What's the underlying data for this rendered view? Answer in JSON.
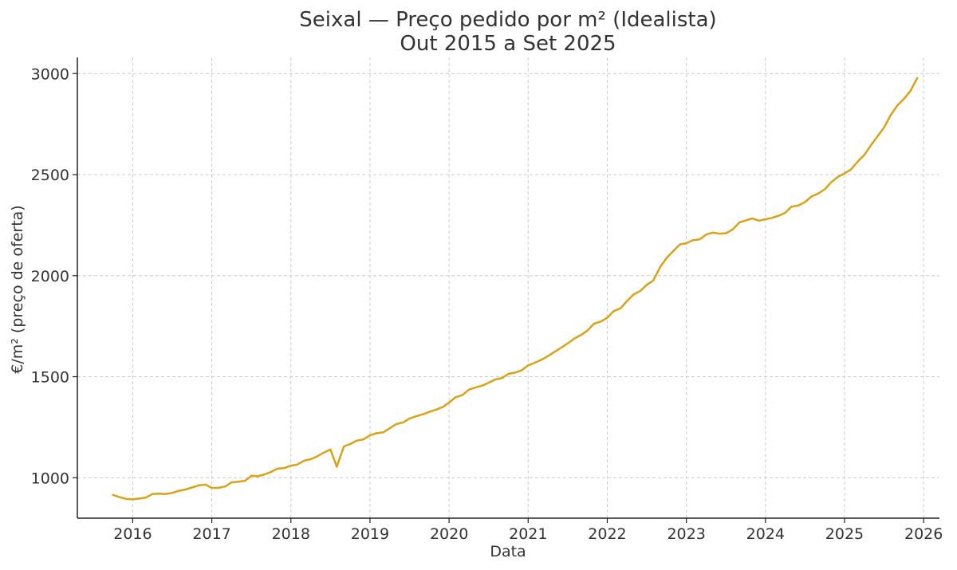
{
  "chart_data": {
    "type": "line",
    "title": "Seixal — Preço pedido por m² (Idealista)",
    "subtitle": "Out 2015 a Set 2025",
    "xlabel": "Data",
    "ylabel": "€/m² (preço de oferta)",
    "xlim": [
      2015.3,
      2026.2
    ],
    "ylim": [
      800,
      3080
    ],
    "x_ticks": [
      2016,
      2017,
      2018,
      2019,
      2020,
      2021,
      2022,
      2023,
      2024,
      2025,
      2026
    ],
    "y_ticks": [
      1000,
      1500,
      2000,
      2500,
      3000
    ],
    "grid": true,
    "line_color": "#DAA316",
    "series": [
      {
        "points": [
          [
            2015.75,
            915
          ],
          [
            2015.83,
            905
          ],
          [
            2015.92,
            895
          ],
          [
            2016.0,
            893
          ],
          [
            2016.08,
            897
          ],
          [
            2016.17,
            902
          ],
          [
            2016.25,
            920
          ],
          [
            2016.33,
            921
          ],
          [
            2016.42,
            920
          ],
          [
            2016.5,
            925
          ],
          [
            2016.58,
            935
          ],
          [
            2016.67,
            942
          ],
          [
            2016.75,
            952
          ],
          [
            2016.83,
            962
          ],
          [
            2016.92,
            966
          ],
          [
            2017.0,
            950
          ],
          [
            2017.08,
            950
          ],
          [
            2017.17,
            957
          ],
          [
            2017.25,
            977
          ],
          [
            2017.33,
            980
          ],
          [
            2017.42,
            985
          ],
          [
            2017.5,
            1010
          ],
          [
            2017.58,
            1007
          ],
          [
            2017.67,
            1017
          ],
          [
            2017.75,
            1029
          ],
          [
            2017.83,
            1045
          ],
          [
            2017.92,
            1048
          ],
          [
            2018.0,
            1060
          ],
          [
            2018.08,
            1065
          ],
          [
            2018.17,
            1085
          ],
          [
            2018.25,
            1092
          ],
          [
            2018.33,
            1105
          ],
          [
            2018.42,
            1125
          ],
          [
            2018.5,
            1140
          ],
          [
            2018.58,
            1055
          ],
          [
            2018.67,
            1155
          ],
          [
            2018.75,
            1167
          ],
          [
            2018.83,
            1184
          ],
          [
            2018.92,
            1190
          ],
          [
            2019.0,
            1210
          ],
          [
            2019.08,
            1220
          ],
          [
            2019.17,
            1225
          ],
          [
            2019.25,
            1245
          ],
          [
            2019.33,
            1265
          ],
          [
            2019.42,
            1274
          ],
          [
            2019.5,
            1293
          ],
          [
            2019.58,
            1304
          ],
          [
            2019.67,
            1314
          ],
          [
            2019.75,
            1326
          ],
          [
            2019.83,
            1336
          ],
          [
            2019.92,
            1350
          ],
          [
            2020.0,
            1372
          ],
          [
            2020.08,
            1398
          ],
          [
            2020.17,
            1410
          ],
          [
            2020.25,
            1436
          ],
          [
            2020.33,
            1446
          ],
          [
            2020.42,
            1456
          ],
          [
            2020.5,
            1470
          ],
          [
            2020.58,
            1486
          ],
          [
            2020.67,
            1494
          ],
          [
            2020.75,
            1514
          ],
          [
            2020.83,
            1520
          ],
          [
            2020.92,
            1532
          ],
          [
            2021.0,
            1556
          ],
          [
            2021.08,
            1569
          ],
          [
            2021.17,
            1584
          ],
          [
            2021.25,
            1602
          ],
          [
            2021.33,
            1622
          ],
          [
            2021.42,
            1644
          ],
          [
            2021.5,
            1665
          ],
          [
            2021.58,
            1688
          ],
          [
            2021.67,
            1707
          ],
          [
            2021.75,
            1728
          ],
          [
            2021.83,
            1762
          ],
          [
            2021.92,
            1773
          ],
          [
            2022.0,
            1792
          ],
          [
            2022.08,
            1824
          ],
          [
            2022.17,
            1839
          ],
          [
            2022.25,
            1875
          ],
          [
            2022.33,
            1906
          ],
          [
            2022.42,
            1925
          ],
          [
            2022.5,
            1955
          ],
          [
            2022.58,
            1975
          ],
          [
            2022.67,
            2043
          ],
          [
            2022.75,
            2087
          ],
          [
            2022.83,
            2120
          ],
          [
            2022.92,
            2155
          ],
          [
            2023.0,
            2160
          ],
          [
            2023.08,
            2175
          ],
          [
            2023.17,
            2180
          ],
          [
            2023.25,
            2203
          ],
          [
            2023.33,
            2213
          ],
          [
            2023.42,
            2208
          ],
          [
            2023.5,
            2210
          ],
          [
            2023.58,
            2227
          ],
          [
            2023.67,
            2263
          ],
          [
            2023.75,
            2273
          ],
          [
            2023.83,
            2283
          ],
          [
            2023.92,
            2272
          ],
          [
            2024.0,
            2279
          ],
          [
            2024.08,
            2286
          ],
          [
            2024.17,
            2297
          ],
          [
            2024.25,
            2311
          ],
          [
            2024.33,
            2341
          ],
          [
            2024.42,
            2348
          ],
          [
            2024.5,
            2364
          ],
          [
            2024.58,
            2391
          ],
          [
            2024.67,
            2407
          ],
          [
            2024.75,
            2427
          ],
          [
            2024.83,
            2462
          ],
          [
            2024.92,
            2490
          ],
          [
            2025.0,
            2506
          ],
          [
            2025.08,
            2525
          ],
          [
            2025.17,
            2566
          ],
          [
            2025.25,
            2597
          ],
          [
            2025.33,
            2643
          ],
          [
            2025.42,
            2691
          ],
          [
            2025.5,
            2733
          ],
          [
            2025.58,
            2792
          ],
          [
            2025.67,
            2843
          ],
          [
            2025.75,
            2874
          ],
          [
            2025.83,
            2912
          ],
          [
            2025.92,
            2978
          ]
        ]
      }
    ]
  }
}
